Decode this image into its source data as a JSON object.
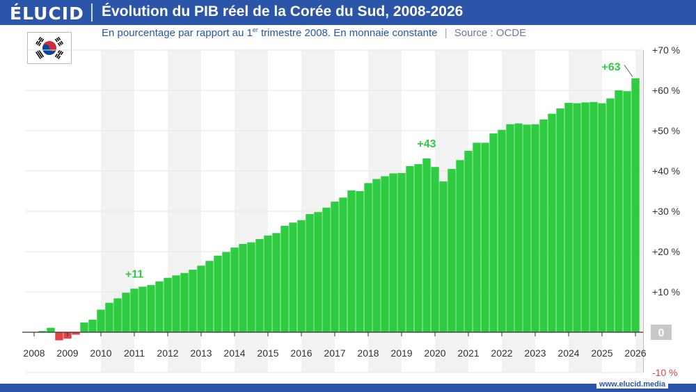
{
  "header": {
    "logo": "ÉLUCID",
    "title": "Évolution du PIB réel de la Corée du Sud, 2008-2026"
  },
  "subtitle": {
    "text_before": "En pourcentage par rapport au 1",
    "superscript": "er",
    "text_after": " trimestre 2008. En monnaie constante",
    "separator": "|",
    "source": "Source : OCDE"
  },
  "flag_icon": "south-korea-flag-icon",
  "website": "www.elucid.media",
  "colors": {
    "header": "#2b55a8",
    "positive_bar": "#2ecc40",
    "negative_bar": "#e04444",
    "annotation": "#2ecc40",
    "band": "#f2f2f2"
  },
  "chart_data": {
    "type": "bar",
    "title": "Évolution du PIB réel de la Corée du Sud, 2008-2026",
    "xlabel": "",
    "ylabel": "",
    "x_start_year": 2008,
    "ylim": [
      -10,
      70
    ],
    "y_ticks": [
      {
        "value": 70,
        "label": "+70 %"
      },
      {
        "value": 60,
        "label": "+60 %"
      },
      {
        "value": 50,
        "label": "+50 %"
      },
      {
        "value": 40,
        "label": "+40 %"
      },
      {
        "value": 30,
        "label": "+30 %"
      },
      {
        "value": 20,
        "label": "+20 %"
      },
      {
        "value": 10,
        "label": "+10 %"
      },
      {
        "value": 0,
        "label": "0"
      },
      {
        "value": -10,
        "label": "-10 %"
      }
    ],
    "x_tick_labels": [
      "2008",
      "2009",
      "2010",
      "2011",
      "2012",
      "2013",
      "2014",
      "2015",
      "2016",
      "2017",
      "2018",
      "2019",
      "2020",
      "2021",
      "2022",
      "2023",
      "2024",
      "2025",
      "2026"
    ],
    "values": [
      0,
      0.3,
      1.1,
      -2.0,
      -1.6,
      -0.6,
      2.4,
      3.1,
      5.6,
      7.3,
      8.4,
      9.8,
      10.8,
      11.3,
      11.7,
      12.6,
      13.5,
      14.1,
      14.7,
      15.5,
      16.5,
      17.7,
      19.0,
      19.9,
      21.0,
      21.9,
      22.3,
      23.1,
      24.0,
      24.6,
      26.4,
      27.2,
      27.8,
      29.3,
      29.8,
      30.9,
      32.4,
      33.4,
      35.2,
      35.0,
      37.0,
      38.0,
      38.7,
      39.4,
      39.5,
      41.2,
      41.7,
      43.1,
      41.0,
      37.4,
      40.5,
      42.7,
      45.0,
      47.0,
      47.0,
      49.3,
      50.2,
      51.6,
      51.8,
      51.5,
      51.6,
      52.8,
      54.2,
      55.5,
      56.9,
      56.8,
      57.0,
      57.1,
      56.8,
      58.0,
      60.0,
      59.8,
      63.0
    ],
    "annotations": [
      {
        "label": "+11",
        "index": 12,
        "value": 11
      },
      {
        "label": "+43",
        "index": 47,
        "value": 43
      },
      {
        "label": "+63",
        "index": 72,
        "value": 63
      }
    ],
    "grid": true,
    "legend": "none"
  }
}
